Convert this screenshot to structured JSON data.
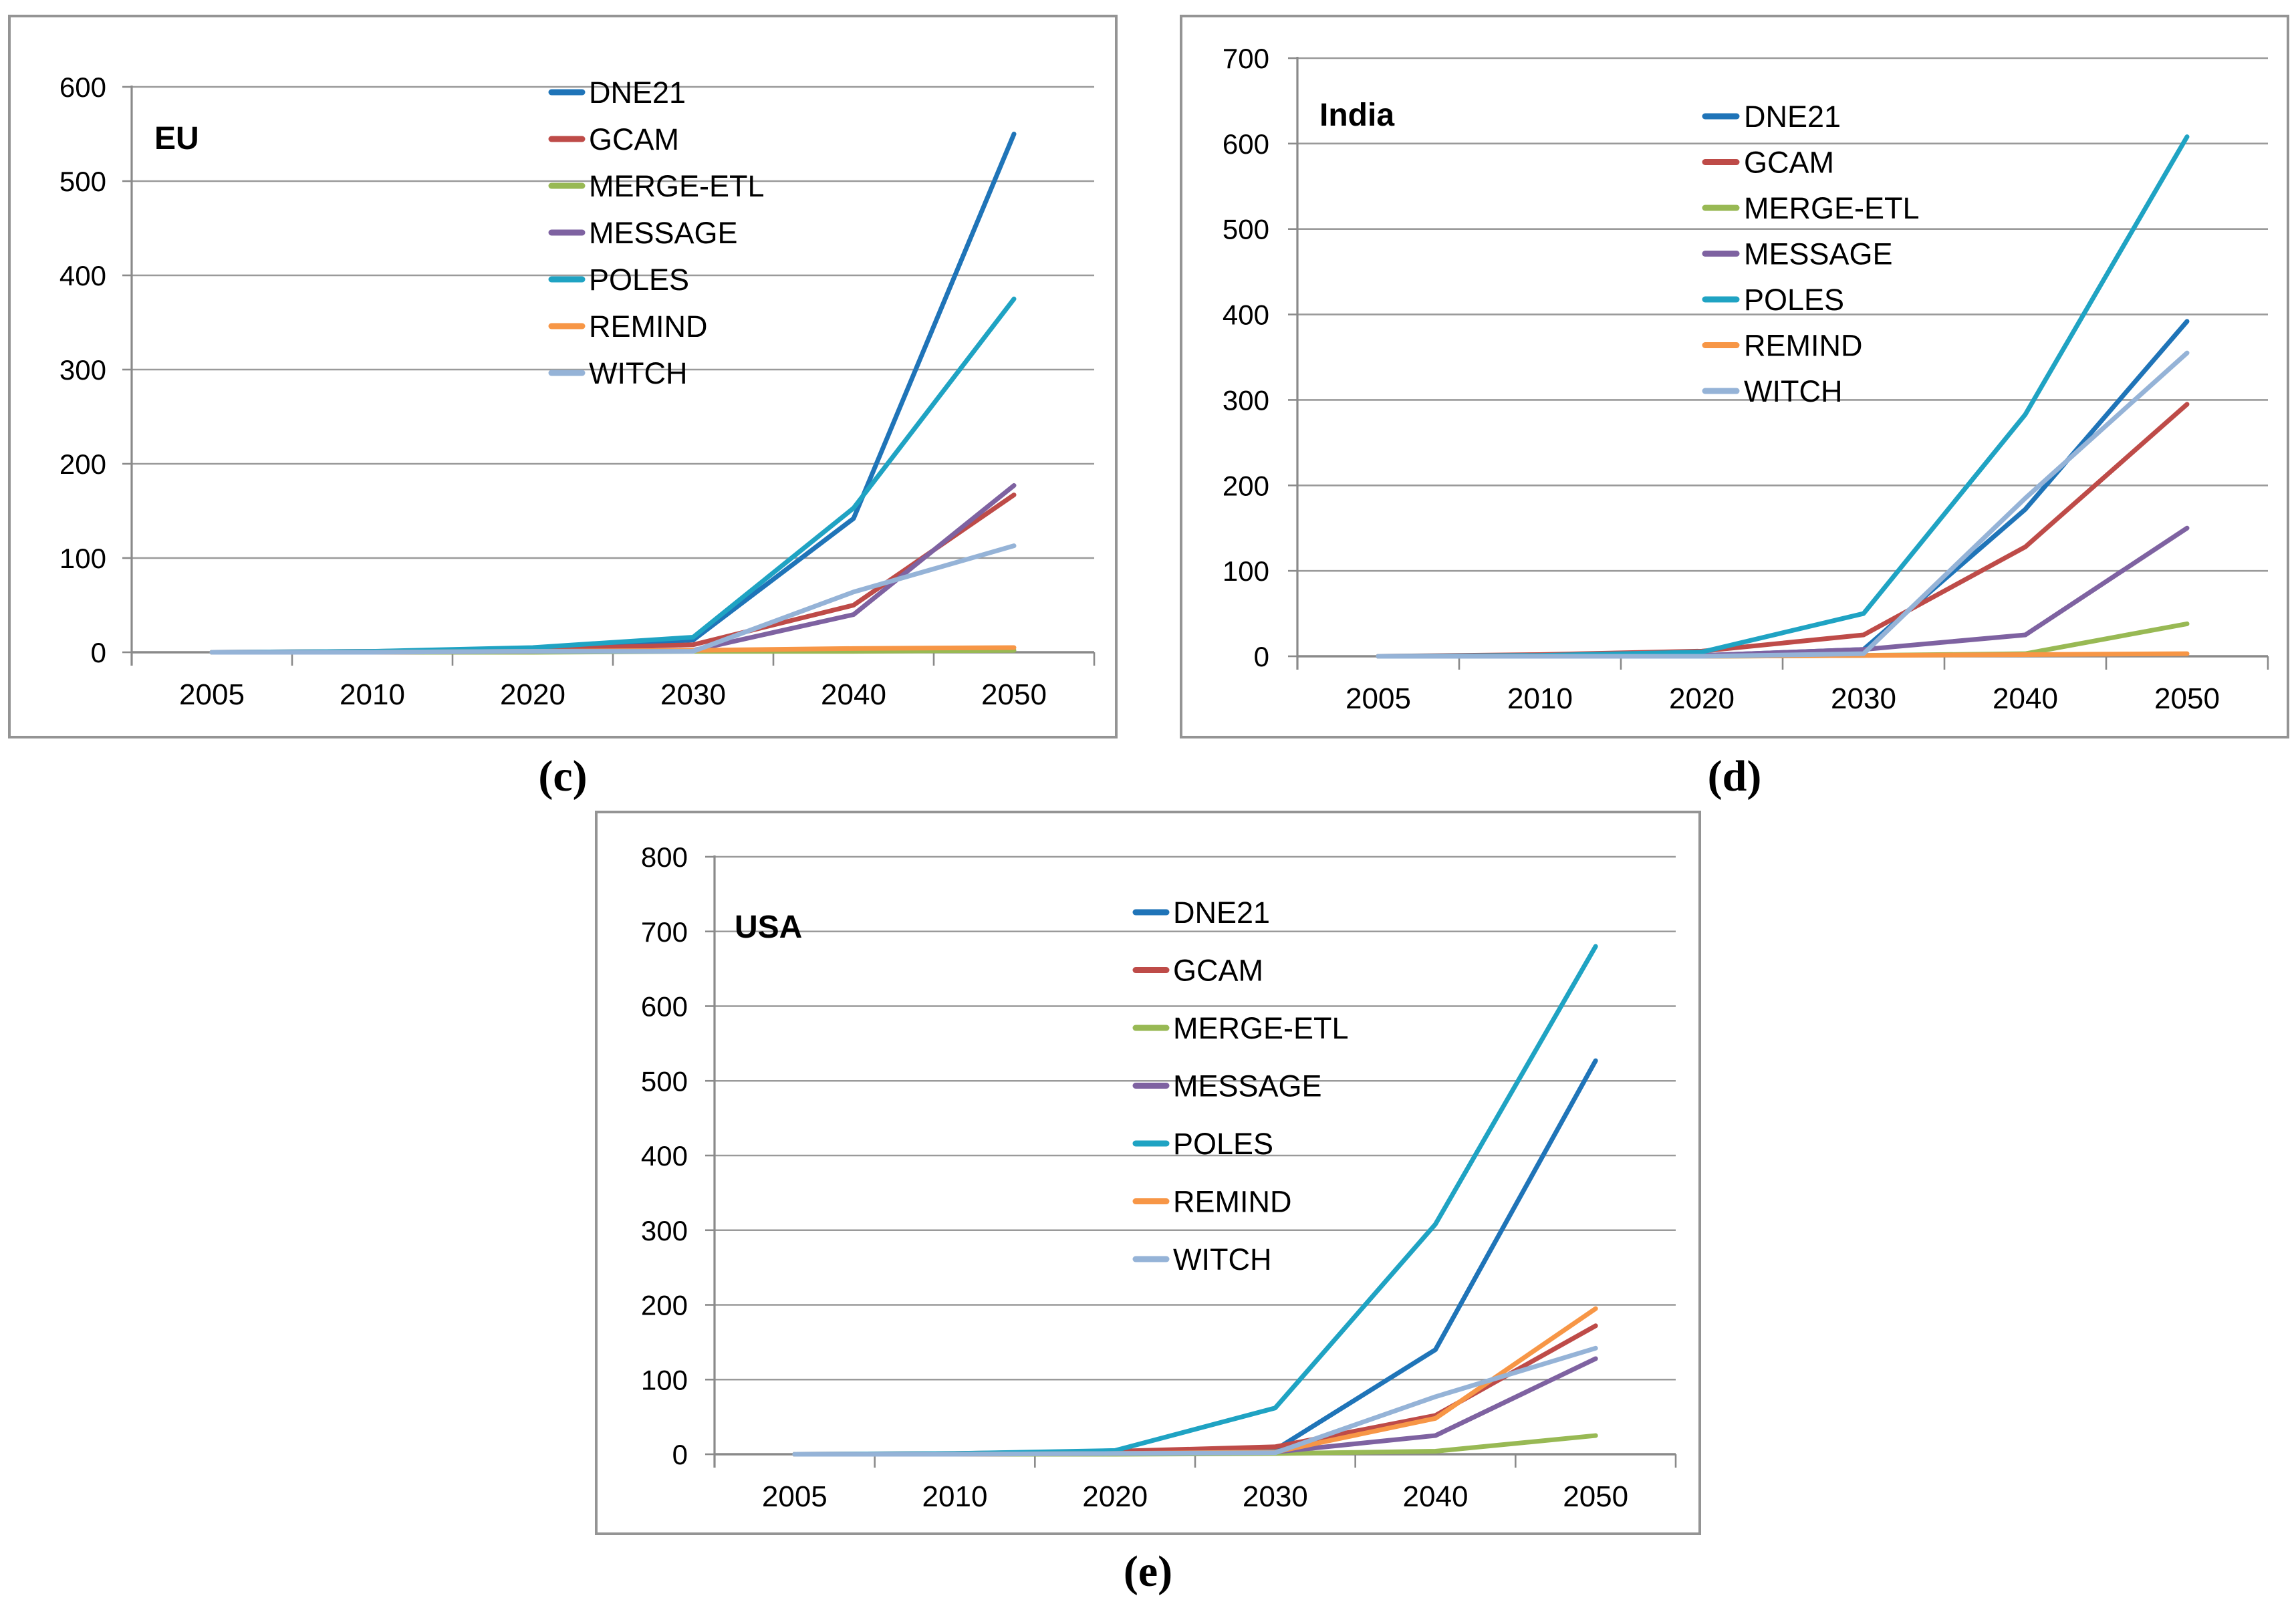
{
  "figure": {
    "panel_labels": [
      "(c)",
      "(d)",
      "(e)"
    ],
    "background_color": "#ffffff",
    "gridline_color": "#9a9a9a",
    "axis_color": "#8a8a8a",
    "border_color": "#949494",
    "text_color": "#000000"
  },
  "chart_data": [
    {
      "type": "line",
      "title": "EU",
      "panel_label": "(c)",
      "x_categories": [
        "2005",
        "2010",
        "2020",
        "2030",
        "2040",
        "2050"
      ],
      "ylim": [
        0,
        600
      ],
      "ytick_step": 100,
      "ytick_labels": [
        "0",
        "100",
        "200",
        "300",
        "400",
        "500",
        "600"
      ],
      "grid": true,
      "legend_position": "inside-top-center",
      "series": [
        {
          "name": "DNE21",
          "color": "#1F74B8",
          "values": [
            0,
            0,
            3,
            13,
            142,
            550
          ]
        },
        {
          "name": "GCAM",
          "color": "#BE4B48",
          "values": [
            0,
            1,
            3,
            8,
            50,
            167
          ]
        },
        {
          "name": "MERGE-ETL",
          "color": "#98B954",
          "values": [
            0,
            0,
            0,
            1,
            1,
            2
          ]
        },
        {
          "name": "MESSAGE",
          "color": "#7E62A1",
          "values": [
            0,
            0,
            1,
            2,
            40,
            177
          ]
        },
        {
          "name": "POLES",
          "color": "#1FA3C3",
          "values": [
            0,
            1,
            5,
            16,
            153,
            375
          ]
        },
        {
          "name": "REMIND",
          "color": "#F79646",
          "values": [
            0,
            0,
            1,
            2,
            4,
            5
          ]
        },
        {
          "name": "WITCH",
          "color": "#95B3D7",
          "values": [
            0,
            0,
            1,
            1,
            64,
            113
          ]
        }
      ]
    },
    {
      "type": "line",
      "title": "India",
      "panel_label": "(d)",
      "x_categories": [
        "2005",
        "2010",
        "2020",
        "2030",
        "2040",
        "2050"
      ],
      "ylim": [
        0,
        700
      ],
      "ytick_step": 100,
      "ytick_labels": [
        "0",
        "100",
        "200",
        "300",
        "400",
        "500",
        "600",
        "700"
      ],
      "grid": true,
      "legend_position": "inside-right",
      "series": [
        {
          "name": "DNE21",
          "color": "#1F74B8",
          "values": [
            0,
            0,
            1,
            8,
            172,
            392
          ]
        },
        {
          "name": "GCAM",
          "color": "#BE4B48",
          "values": [
            0,
            2,
            6,
            25,
            128,
            295
          ]
        },
        {
          "name": "MERGE-ETL",
          "color": "#98B954",
          "values": [
            0,
            0,
            0,
            1,
            3,
            38
          ]
        },
        {
          "name": "MESSAGE",
          "color": "#7E62A1",
          "values": [
            0,
            0,
            1,
            8,
            25,
            150
          ]
        },
        {
          "name": "POLES",
          "color": "#1FA3C3",
          "values": [
            0,
            1,
            5,
            50,
            283,
            608
          ]
        },
        {
          "name": "REMIND",
          "color": "#F79646",
          "values": [
            0,
            0,
            0,
            1,
            2,
            3
          ]
        },
        {
          "name": "WITCH",
          "color": "#95B3D7",
          "values": [
            0,
            0,
            0,
            3,
            185,
            355
          ]
        }
      ]
    },
    {
      "type": "line",
      "title": "USA",
      "panel_label": "(e)",
      "x_categories": [
        "2005",
        "2010",
        "2020",
        "2030",
        "2040",
        "2050"
      ],
      "ylim": [
        0,
        800
      ],
      "ytick_step": 100,
      "ytick_labels": [
        "0",
        "100",
        "200",
        "300",
        "400",
        "500",
        "600",
        "700",
        "800"
      ],
      "grid": true,
      "legend_position": "inside-right",
      "series": [
        {
          "name": "DNE21",
          "color": "#1F74B8",
          "values": [
            0,
            0,
            2,
            6,
            140,
            527
          ]
        },
        {
          "name": "GCAM",
          "color": "#BE4B48",
          "values": [
            0,
            1,
            4,
            10,
            52,
            172
          ]
        },
        {
          "name": "MERGE-ETL",
          "color": "#98B954",
          "values": [
            0,
            0,
            0,
            1,
            4,
            25
          ]
        },
        {
          "name": "MESSAGE",
          "color": "#7E62A1",
          "values": [
            0,
            0,
            1,
            3,
            25,
            128
          ]
        },
        {
          "name": "POLES",
          "color": "#1FA3C3",
          "values": [
            0,
            1,
            5,
            62,
            308,
            680
          ]
        },
        {
          "name": "REMIND",
          "color": "#F79646",
          "values": [
            0,
            0,
            1,
            3,
            48,
            195
          ]
        },
        {
          "name": "WITCH",
          "color": "#95B3D7",
          "values": [
            0,
            0,
            1,
            2,
            77,
            142
          ]
        }
      ]
    }
  ]
}
